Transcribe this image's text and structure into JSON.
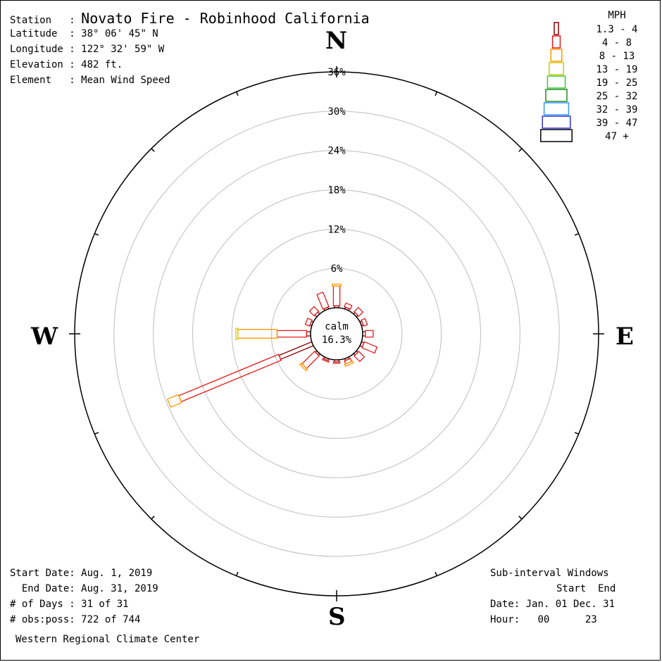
{
  "header": {
    "station_label": "Station",
    "station_value": "Novato Fire - Robinhood California",
    "latitude_label": "Latitude",
    "latitude_value": "38° 06' 45\" N",
    "longitude_label": "Longitude",
    "longitude_value": "122° 32' 59\" W",
    "elevation_label": "Elevation",
    "elevation_value": "482 ft.",
    "element_label": "Element",
    "element_value": "Mean Wind Speed"
  },
  "cardinals": {
    "n": "N",
    "e": "E",
    "s": "S",
    "w": "W"
  },
  "legend": {
    "title": "MPH",
    "items": [
      {
        "label": "1.3 - 4",
        "color": "#8b0000"
      },
      {
        "label": "4 - 8",
        "color": "#e31a1c"
      },
      {
        "label": "8 - 13",
        "color": "#ff9900"
      },
      {
        "label": "13 - 19",
        "color": "#d4c800"
      },
      {
        "label": "19 - 25",
        "color": "#33cc33"
      },
      {
        "label": "25 - 32",
        "color": "#228b22"
      },
      {
        "label": "32 - 39",
        "color": "#3399ff"
      },
      {
        "label": "39 - 47",
        "color": "#3333cc"
      },
      {
        "label": "47 +",
        "color": "#000000"
      }
    ]
  },
  "calm": {
    "label": "calm",
    "value": "16.3%"
  },
  "footer_left": {
    "start_date": "Start Date: Aug. 1, 2019",
    "end_date": "  End Date: Aug. 31, 2019",
    "days": "# of Days : 31 of 31",
    "obs": "# obs:poss: 722 of 744",
    "credit": "Western Regional Climate Center"
  },
  "footer_right": {
    "title": "Sub-interval Windows",
    "header": "Start  End",
    "date_label": "Date:",
    "date_value": "Jan. 01 Dec. 31",
    "hour_label": "Hour:",
    "hour_value": "00      23"
  },
  "chart_data": {
    "type": "wind-rose",
    "units": "percent frequency",
    "rings": [
      6,
      12,
      18,
      24,
      30,
      36
    ],
    "ring_labels": [
      "6%",
      "12%",
      "18%",
      "24%",
      "30%",
      "36%"
    ],
    "calm_percent": 16.3,
    "speed_bins": [
      "1.3 - 4",
      "4 - 8",
      "8 - 13",
      "13 - 19",
      "19 - 25",
      "25 - 32",
      "32 - 39",
      "39 - 47",
      "47 +"
    ],
    "directions": [
      {
        "deg": 0,
        "segments": [
          0.3,
          3.0,
          0.3
        ]
      },
      {
        "deg": 22.5,
        "segments": [
          0.3,
          0.6
        ]
      },
      {
        "deg": 45,
        "segments": [
          0.3,
          0.9
        ]
      },
      {
        "deg": 67.5,
        "segments": [
          0.3,
          0.6
        ]
      },
      {
        "deg": 90,
        "segments": [
          0.4,
          1.2
        ]
      },
      {
        "deg": 112.5,
        "segments": [
          0.4,
          2.1
        ]
      },
      {
        "deg": 135,
        "segments": [
          0.3,
          1.2
        ]
      },
      {
        "deg": 157.5,
        "segments": [
          0.3,
          0.5,
          0.3
        ]
      },
      {
        "deg": 180,
        "segments": [
          0.3,
          0.2
        ]
      },
      {
        "deg": 202.5,
        "segments": [
          0.3,
          0.2
        ]
      },
      {
        "deg": 225,
        "segments": [
          0.3,
          2.7,
          0.3
        ]
      },
      {
        "deg": 247.5,
        "segments": [
          5.4,
          16.5,
          1.8
        ]
      },
      {
        "deg": 270,
        "segments": [
          0.6,
          4.5,
          6.0,
          0.3
        ]
      },
      {
        "deg": 292.5,
        "segments": [
          0.3,
          0.7
        ]
      },
      {
        "deg": 315,
        "segments": [
          0.4,
          1.0
        ]
      },
      {
        "deg": 337.5,
        "segments": [
          0.3,
          2.4
        ]
      }
    ]
  }
}
